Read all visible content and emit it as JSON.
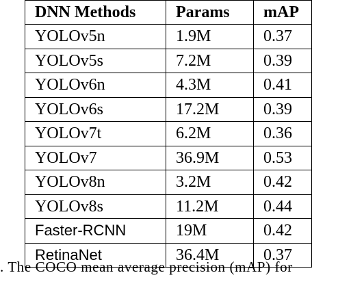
{
  "table": {
    "headers": [
      "DNN Methods",
      "Params",
      "mAP"
    ],
    "rows": [
      {
        "method": "YOLOv5n",
        "params": "1.9M",
        "map": "0.37"
      },
      {
        "method": "YOLOv5s",
        "params": "7.2M",
        "map": "0.39"
      },
      {
        "method": "YOLOv6n",
        "params": "4.3M",
        "map": "0.41"
      },
      {
        "method": "YOLOv6s",
        "params": "17.2M",
        "map": "0.39"
      },
      {
        "method": "YOLOv7t",
        "params": "6.2M",
        "map": "0.36"
      },
      {
        "method": "YOLOv7",
        "params": "36.9M",
        "map": "0.53"
      },
      {
        "method": "YOLOv8n",
        "params": "3.2M",
        "map": "0.42"
      },
      {
        "method": "YOLOv8s",
        "params": "11.2M",
        "map": "0.44"
      },
      {
        "method": "Faster-RCNN",
        "params": "19M",
        "map": "0.42"
      },
      {
        "method": "RetinaNet",
        "params": "36.4M",
        "map": "0.37"
      }
    ]
  },
  "caption": {
    "line1": ". The COCO mean average precision (mAP) for"
  }
}
